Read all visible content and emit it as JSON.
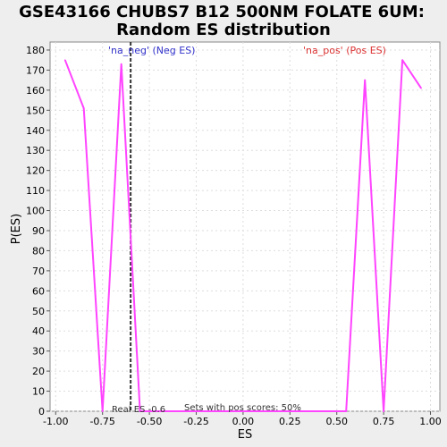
{
  "chart_data": {
    "type": "line",
    "title_line1": "GSE43166 CHUBS7 B12 500NM FOLATE 6UM:",
    "title_line2": "Random ES distribution",
    "xlabel": "ES",
    "ylabel": "P(ES)",
    "xlim": [
      -1.03,
      1.05
    ],
    "ylim": [
      0,
      184
    ],
    "grid": true,
    "x_ticks": [
      -1.0,
      -0.75,
      -0.5,
      -0.25,
      0.0,
      0.25,
      0.5,
      0.75,
      1.0
    ],
    "x_tick_labels": [
      "-1.00",
      "-0.75",
      "-0.50",
      "-0.25",
      "0.00",
      "0.25",
      "0.50",
      "0.75",
      "1.00"
    ],
    "y_ticks": [
      0,
      10,
      20,
      30,
      40,
      50,
      60,
      70,
      80,
      90,
      100,
      110,
      120,
      130,
      140,
      150,
      160,
      170,
      180
    ],
    "y_tick_labels": [
      "0",
      "10",
      "20",
      "30",
      "40",
      "50",
      "60",
      "70",
      "80",
      "90",
      "100",
      "110",
      "120",
      "130",
      "140",
      "150",
      "160",
      "170",
      "180"
    ],
    "series": [
      {
        "color": "#ff44ff",
        "x": [
          -0.95,
          -0.85,
          -0.75,
          -0.65,
          -0.55,
          -0.45,
          0.45,
          0.55,
          0.65,
          0.75,
          0.85,
          0.95
        ],
        "y": [
          175,
          151,
          0,
          173,
          0,
          0,
          0,
          0,
          165,
          0,
          175,
          161
        ]
      }
    ],
    "real_es": -0.6,
    "real_es_label": "Real ES -0.6",
    "neg_label": "'na_neg' (Neg ES)",
    "pos_label": "'na_pos' (Pos ES)",
    "pos_scores_label": "Sets with pos scores: 50%",
    "colors": {
      "neg": "#3333cc",
      "pos": "#dd3333",
      "line": "#ff44ff",
      "plot_bg": "#ffffff",
      "page_bg": "#eeeeee",
      "grid": "#dddddd",
      "marker": "#333333"
    }
  }
}
